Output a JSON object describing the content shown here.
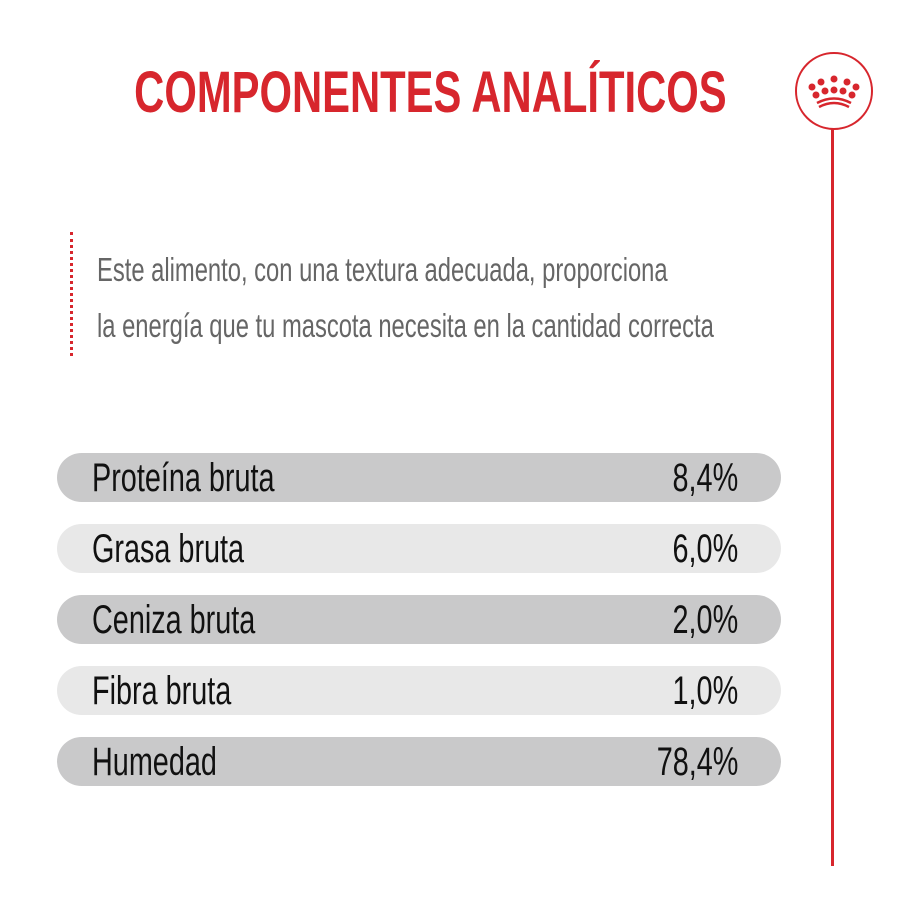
{
  "title": "COMPONENTES ANALÍTICOS",
  "logo": {
    "icon": "royal-canin-crown-icon",
    "color": "#d7262d"
  },
  "description": [
    "Este alimento, con una textura adecuada, proporciona",
    "la energía que tu mascota necesita en la cantidad correcta"
  ],
  "components": [
    {
      "label": "Proteína bruta",
      "value": "8,4%"
    },
    {
      "label": "Grasa bruta",
      "value": "6,0%"
    },
    {
      "label": "Ceniza bruta",
      "value": "2,0%"
    },
    {
      "label": "Fibra bruta",
      "value": "1,0%"
    },
    {
      "label": "Humedad",
      "value": "78,4%"
    }
  ],
  "colors": {
    "accent": "#d7262d",
    "row_dark": "#c9c9ca",
    "row_light": "#e8e8e8",
    "text": "#111111",
    "description": "#666666"
  }
}
